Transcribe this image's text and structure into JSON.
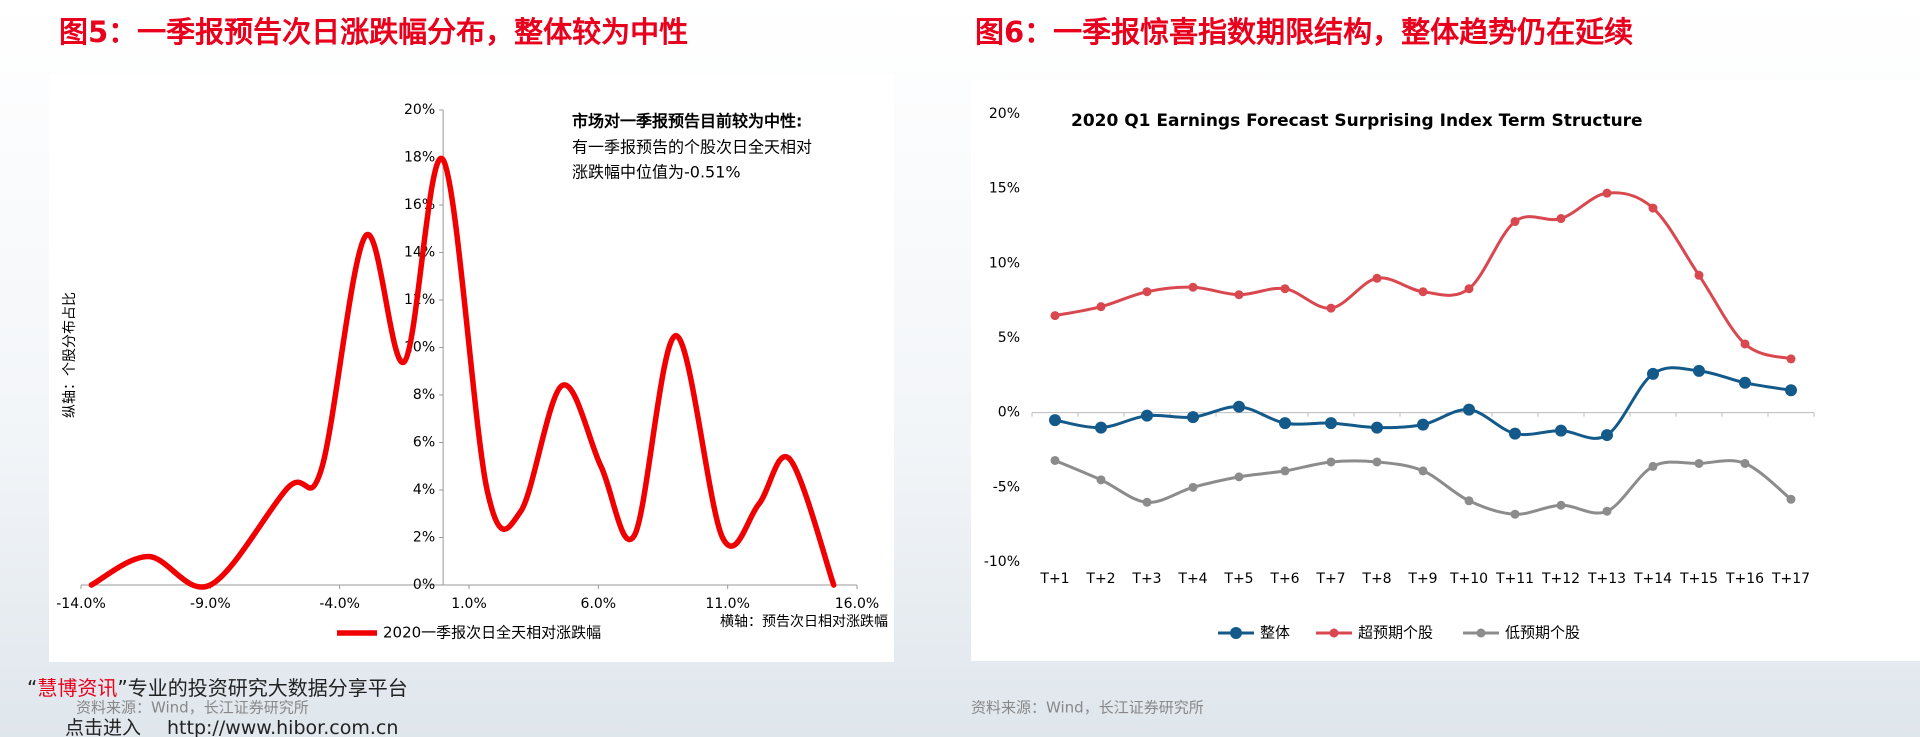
{
  "chart_data": [
    {
      "type": "line",
      "caption": "图5：一季报预告次日涨跌幅分布，整体较为中性",
      "annotation": {
        "title": "市场对一季报预告目前较为中性:",
        "lines": [
          "有一季报预告的个股次日全天相对",
          "涨跌幅中位值为-0.51%"
        ]
      },
      "ylabel": "纵轴：个股分布占比",
      "xlabel": "横轴：预告次日相对涨跌幅",
      "smooth": true,
      "markers": false,
      "x": [
        -13.6,
        -11.4,
        -9.0,
        -6.0,
        -4.7,
        -3.0,
        -1.5,
        0.0,
        1.7,
        3.0,
        4.6,
        6.1,
        7.4,
        9.0,
        10.8,
        12.2,
        13.4,
        15.1
      ],
      "series": [
        {
          "name": "2020一季报次日全天相对涨跌幅",
          "color": "#f00000",
          "values": [
            0,
            1.2,
            0,
            4.1,
            4.9,
            14.7,
            9.4,
            17.9,
            4.0,
            3.1,
            8.4,
            5.0,
            2.1,
            10.5,
            2.0,
            3.4,
            5.3,
            0
          ]
        }
      ],
      "xlim": [
        -14,
        16
      ],
      "xticks": [
        {
          "value": -14,
          "label": "-14.0%"
        },
        {
          "value": -9,
          "label": "-9.0%"
        },
        {
          "value": -4,
          "label": "-4.0%"
        },
        {
          "value": 1,
          "label": "1.0%"
        },
        {
          "value": 6,
          "label": "6.0%"
        },
        {
          "value": 11,
          "label": "11.0%"
        },
        {
          "value": 16,
          "label": "16.0%"
        }
      ],
      "ylim": [
        0,
        20
      ],
      "yticks": [
        {
          "value": 0,
          "label": "0%"
        },
        {
          "value": 2,
          "label": "2%"
        },
        {
          "value": 4,
          "label": "4%"
        },
        {
          "value": 6,
          "label": "6%"
        },
        {
          "value": 8,
          "label": "8%"
        },
        {
          "value": 10,
          "label": "10%"
        },
        {
          "value": 12,
          "label": "12%"
        },
        {
          "value": 14,
          "label": "14%"
        },
        {
          "value": 16,
          "label": "16%"
        },
        {
          "value": 18,
          "label": "18%"
        },
        {
          "value": 20,
          "label": "20%"
        }
      ],
      "source": "资料来源：Wind，长江证券研究所"
    },
    {
      "type": "line",
      "caption": "图6：一季报惊喜指数期限结构，整体趋势仍在延续",
      "title": "2020 Q1 Earnings Forecast Surprising Index Term Structure",
      "smooth": true,
      "markers": true,
      "categories": [
        "T+1",
        "T+2",
        "T+3",
        "T+4",
        "T+5",
        "T+6",
        "T+7",
        "T+8",
        "T+9",
        "T+10",
        "T+11",
        "T+12",
        "T+13",
        "T+14",
        "T+15",
        "T+16",
        "T+17"
      ],
      "series": [
        {
          "name": "整体",
          "color": "#135a8a",
          "values": [
            -0.5,
            -1.0,
            -0.2,
            -0.3,
            0.4,
            -0.7,
            -0.7,
            -1.0,
            -0.8,
            0.2,
            -1.4,
            -1.2,
            -1.5,
            2.6,
            2.8,
            2.0,
            1.5
          ]
        },
        {
          "name": "超预期个股",
          "color": "#d9474f",
          "values": [
            6.5,
            7.1,
            8.1,
            8.4,
            7.9,
            8.3,
            7.0,
            9.0,
            8.1,
            8.3,
            12.8,
            13.0,
            14.7,
            13.7,
            9.2,
            4.6,
            3.6
          ]
        },
        {
          "name": "低预期个股",
          "color": "#8c8c8c",
          "values": [
            -3.2,
            -4.5,
            -6.0,
            -5.0,
            -4.3,
            -3.9,
            -3.3,
            -3.3,
            -3.9,
            -5.9,
            -6.8,
            -6.2,
            -6.6,
            -3.6,
            -3.4,
            -3.4,
            -5.8
          ]
        }
      ],
      "ylim": [
        -10,
        20
      ],
      "yticks": [
        {
          "value": -10,
          "label": "-10%"
        },
        {
          "value": -5,
          "label": "-5%"
        },
        {
          "value": 0,
          "label": "0%"
        },
        {
          "value": 5,
          "label": "5%"
        },
        {
          "value": 10,
          "label": "10%"
        },
        {
          "value": 15,
          "label": "15%"
        },
        {
          "value": 20,
          "label": "20%"
        }
      ],
      "source": "资料来源：Wind，长江证券研究所"
    }
  ],
  "watermark": {
    "open": "“",
    "brand": "慧博资讯",
    "slogan": "”专业的投资研究大数据分享平台",
    "enter": "点击进入",
    "url": "http://www.hibor.com.cn"
  }
}
